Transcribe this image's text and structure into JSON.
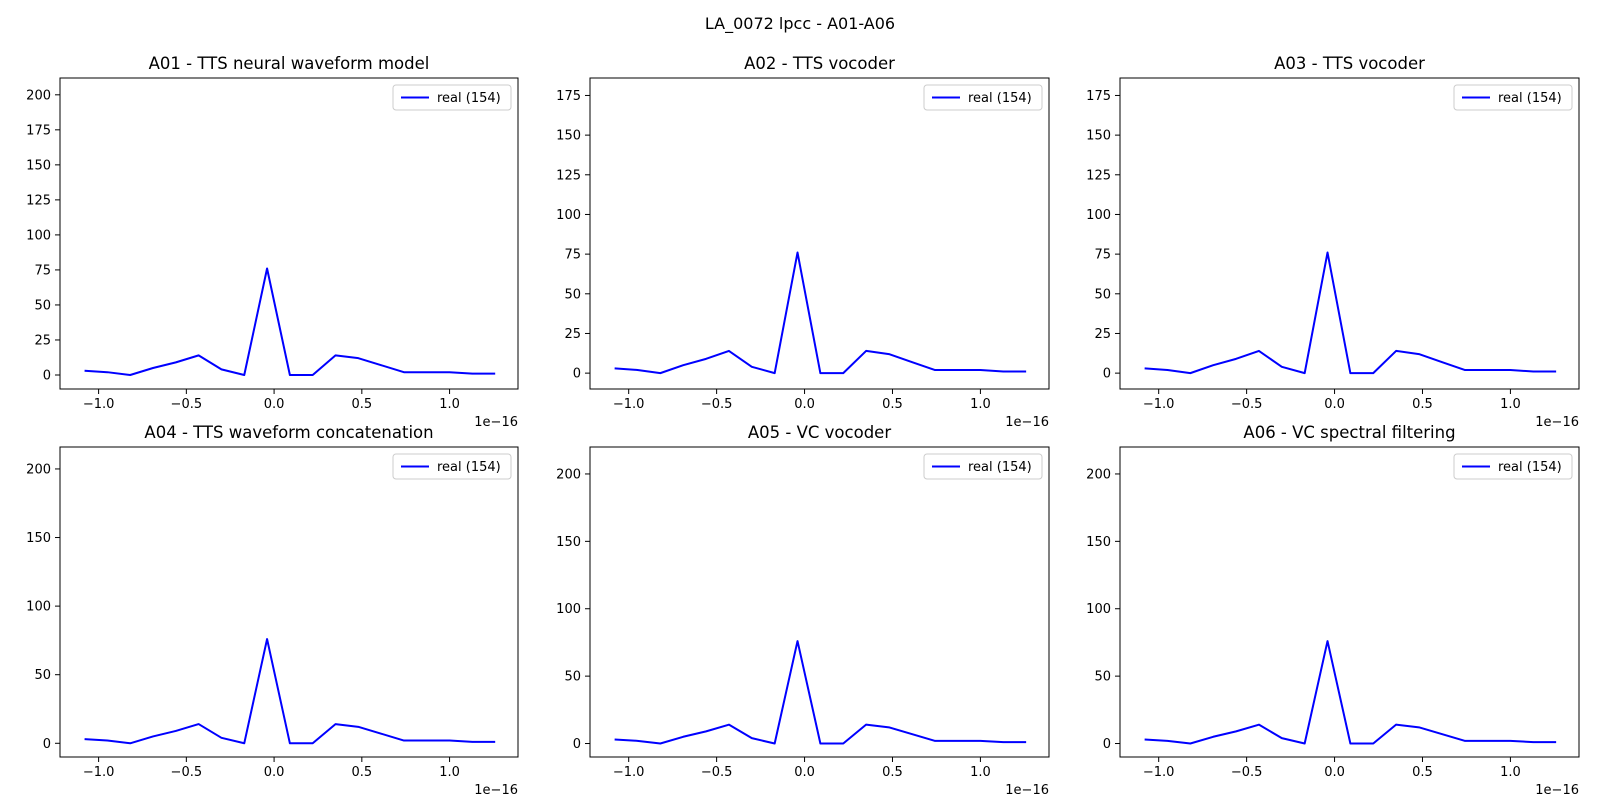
{
  "figure": {
    "suptitle": "LA_0072 lpcc - A01-A06",
    "line_color": "#0000ff"
  },
  "chart_data": [
    {
      "type": "line",
      "title": "A01 - TTS neural waveform model",
      "x_offset_label": "1e−16",
      "xlim": [
        -1.22,
        1.39
      ],
      "ylim": [
        -10,
        212
      ],
      "xticks": [
        -1.0,
        -0.5,
        0.0,
        0.5,
        1.0
      ],
      "xtick_labels": [
        "−1.0",
        "−0.5",
        "0.0",
        "0.5",
        "1.0"
      ],
      "yticks": [
        0,
        25,
        50,
        75,
        100,
        125,
        150,
        175,
        200
      ],
      "ytick_labels": [
        "0",
        "25",
        "50",
        "75",
        "100",
        "125",
        "150",
        "175",
        "200"
      ],
      "legend": "top-right",
      "series": [
        {
          "name": "real (154)",
          "color": "#0000ff",
          "x": [
            -1.08,
            -0.95,
            -0.82,
            -0.69,
            -0.56,
            -0.43,
            -0.3,
            -0.17,
            -0.04,
            0.09,
            0.22,
            0.35,
            0.48,
            0.61,
            0.74,
            0.87,
            1.0,
            1.13,
            1.26
          ],
          "y": [
            3,
            2,
            0,
            5,
            9,
            14,
            4,
            0,
            76,
            0,
            0,
            14,
            12,
            7,
            2,
            2,
            2,
            1,
            1
          ]
        }
      ]
    },
    {
      "type": "line",
      "title": "A02 - TTS vocoder",
      "x_offset_label": "1e−16",
      "xlim": [
        -1.22,
        1.39
      ],
      "ylim": [
        -10,
        186
      ],
      "xticks": [
        -1.0,
        -0.5,
        0.0,
        0.5,
        1.0
      ],
      "xtick_labels": [
        "−1.0",
        "−0.5",
        "0.0",
        "0.5",
        "1.0"
      ],
      "yticks": [
        0,
        25,
        50,
        75,
        100,
        125,
        150,
        175
      ],
      "ytick_labels": [
        "0",
        "25",
        "50",
        "75",
        "100",
        "125",
        "150",
        "175"
      ],
      "legend": "top-right",
      "series": [
        {
          "name": "real (154)",
          "color": "#0000ff",
          "x": [
            -1.08,
            -0.95,
            -0.82,
            -0.69,
            -0.56,
            -0.43,
            -0.3,
            -0.17,
            -0.04,
            0.09,
            0.22,
            0.35,
            0.48,
            0.61,
            0.74,
            0.87,
            1.0,
            1.13,
            1.26
          ],
          "y": [
            3,
            2,
            0,
            5,
            9,
            14,
            4,
            0,
            76,
            0,
            0,
            14,
            12,
            7,
            2,
            2,
            2,
            1,
            1
          ]
        }
      ]
    },
    {
      "type": "line",
      "title": "A03 - TTS vocoder",
      "x_offset_label": "1e−16",
      "xlim": [
        -1.22,
        1.39
      ],
      "ylim": [
        -10,
        186
      ],
      "xticks": [
        -1.0,
        -0.5,
        0.0,
        0.5,
        1.0
      ],
      "xtick_labels": [
        "−1.0",
        "−0.5",
        "0.0",
        "0.5",
        "1.0"
      ],
      "yticks": [
        0,
        25,
        50,
        75,
        100,
        125,
        150,
        175
      ],
      "ytick_labels": [
        "0",
        "25",
        "50",
        "75",
        "100",
        "125",
        "150",
        "175"
      ],
      "legend": "top-right",
      "series": [
        {
          "name": "real (154)",
          "color": "#0000ff",
          "x": [
            -1.08,
            -0.95,
            -0.82,
            -0.69,
            -0.56,
            -0.43,
            -0.3,
            -0.17,
            -0.04,
            0.09,
            0.22,
            0.35,
            0.48,
            0.61,
            0.74,
            0.87,
            1.0,
            1.13,
            1.26
          ],
          "y": [
            3,
            2,
            0,
            5,
            9,
            14,
            4,
            0,
            76,
            0,
            0,
            14,
            12,
            7,
            2,
            2,
            2,
            1,
            1
          ]
        }
      ]
    },
    {
      "type": "line",
      "title": "A04 - TTS waveform concatenation",
      "x_offset_label": "1e−16",
      "xlim": [
        -1.22,
        1.39
      ],
      "ylim": [
        -10,
        216
      ],
      "xticks": [
        -1.0,
        -0.5,
        0.0,
        0.5,
        1.0
      ],
      "xtick_labels": [
        "−1.0",
        "−0.5",
        "0.0",
        "0.5",
        "1.0"
      ],
      "yticks": [
        0,
        50,
        100,
        150,
        200
      ],
      "ytick_labels": [
        "0",
        "50",
        "100",
        "150",
        "200"
      ],
      "legend": "top-right",
      "series": [
        {
          "name": "real (154)",
          "color": "#0000ff",
          "x": [
            -1.08,
            -0.95,
            -0.82,
            -0.69,
            -0.56,
            -0.43,
            -0.3,
            -0.17,
            -0.04,
            0.09,
            0.22,
            0.35,
            0.48,
            0.61,
            0.74,
            0.87,
            1.0,
            1.13,
            1.26
          ],
          "y": [
            3,
            2,
            0,
            5,
            9,
            14,
            4,
            0,
            76,
            0,
            0,
            14,
            12,
            7,
            2,
            2,
            2,
            1,
            1
          ]
        }
      ]
    },
    {
      "type": "line",
      "title": "A05 - VC vocoder",
      "x_offset_label": "1e−16",
      "xlim": [
        -1.22,
        1.39
      ],
      "ylim": [
        -10,
        220
      ],
      "xticks": [
        -1.0,
        -0.5,
        0.0,
        0.5,
        1.0
      ],
      "xtick_labels": [
        "−1.0",
        "−0.5",
        "0.0",
        "0.5",
        "1.0"
      ],
      "yticks": [
        0,
        50,
        100,
        150,
        200
      ],
      "ytick_labels": [
        "0",
        "50",
        "100",
        "150",
        "200"
      ],
      "legend": "top-right",
      "series": [
        {
          "name": "real (154)",
          "color": "#0000ff",
          "x": [
            -1.08,
            -0.95,
            -0.82,
            -0.69,
            -0.56,
            -0.43,
            -0.3,
            -0.17,
            -0.04,
            0.09,
            0.22,
            0.35,
            0.48,
            0.61,
            0.74,
            0.87,
            1.0,
            1.13,
            1.26
          ],
          "y": [
            3,
            2,
            0,
            5,
            9,
            14,
            4,
            0,
            76,
            0,
            0,
            14,
            12,
            7,
            2,
            2,
            2,
            1,
            1
          ]
        }
      ]
    },
    {
      "type": "line",
      "title": "A06 - VC spectral filtering",
      "x_offset_label": "1e−16",
      "xlim": [
        -1.22,
        1.39
      ],
      "ylim": [
        -10,
        220
      ],
      "xticks": [
        -1.0,
        -0.5,
        0.0,
        0.5,
        1.0
      ],
      "xtick_labels": [
        "−1.0",
        "−0.5",
        "0.0",
        "0.5",
        "1.0"
      ],
      "yticks": [
        0,
        50,
        100,
        150,
        200
      ],
      "ytick_labels": [
        "0",
        "50",
        "100",
        "150",
        "200"
      ],
      "legend": "top-right",
      "series": [
        {
          "name": "real (154)",
          "color": "#0000ff",
          "x": [
            -1.08,
            -0.95,
            -0.82,
            -0.69,
            -0.56,
            -0.43,
            -0.3,
            -0.17,
            -0.04,
            0.09,
            0.22,
            0.35,
            0.48,
            0.61,
            0.74,
            0.87,
            1.0,
            1.13,
            1.26
          ],
          "y": [
            3,
            2,
            0,
            5,
            9,
            14,
            4,
            0,
            76,
            0,
            0,
            14,
            12,
            7,
            2,
            2,
            2,
            1,
            1
          ]
        }
      ]
    }
  ]
}
